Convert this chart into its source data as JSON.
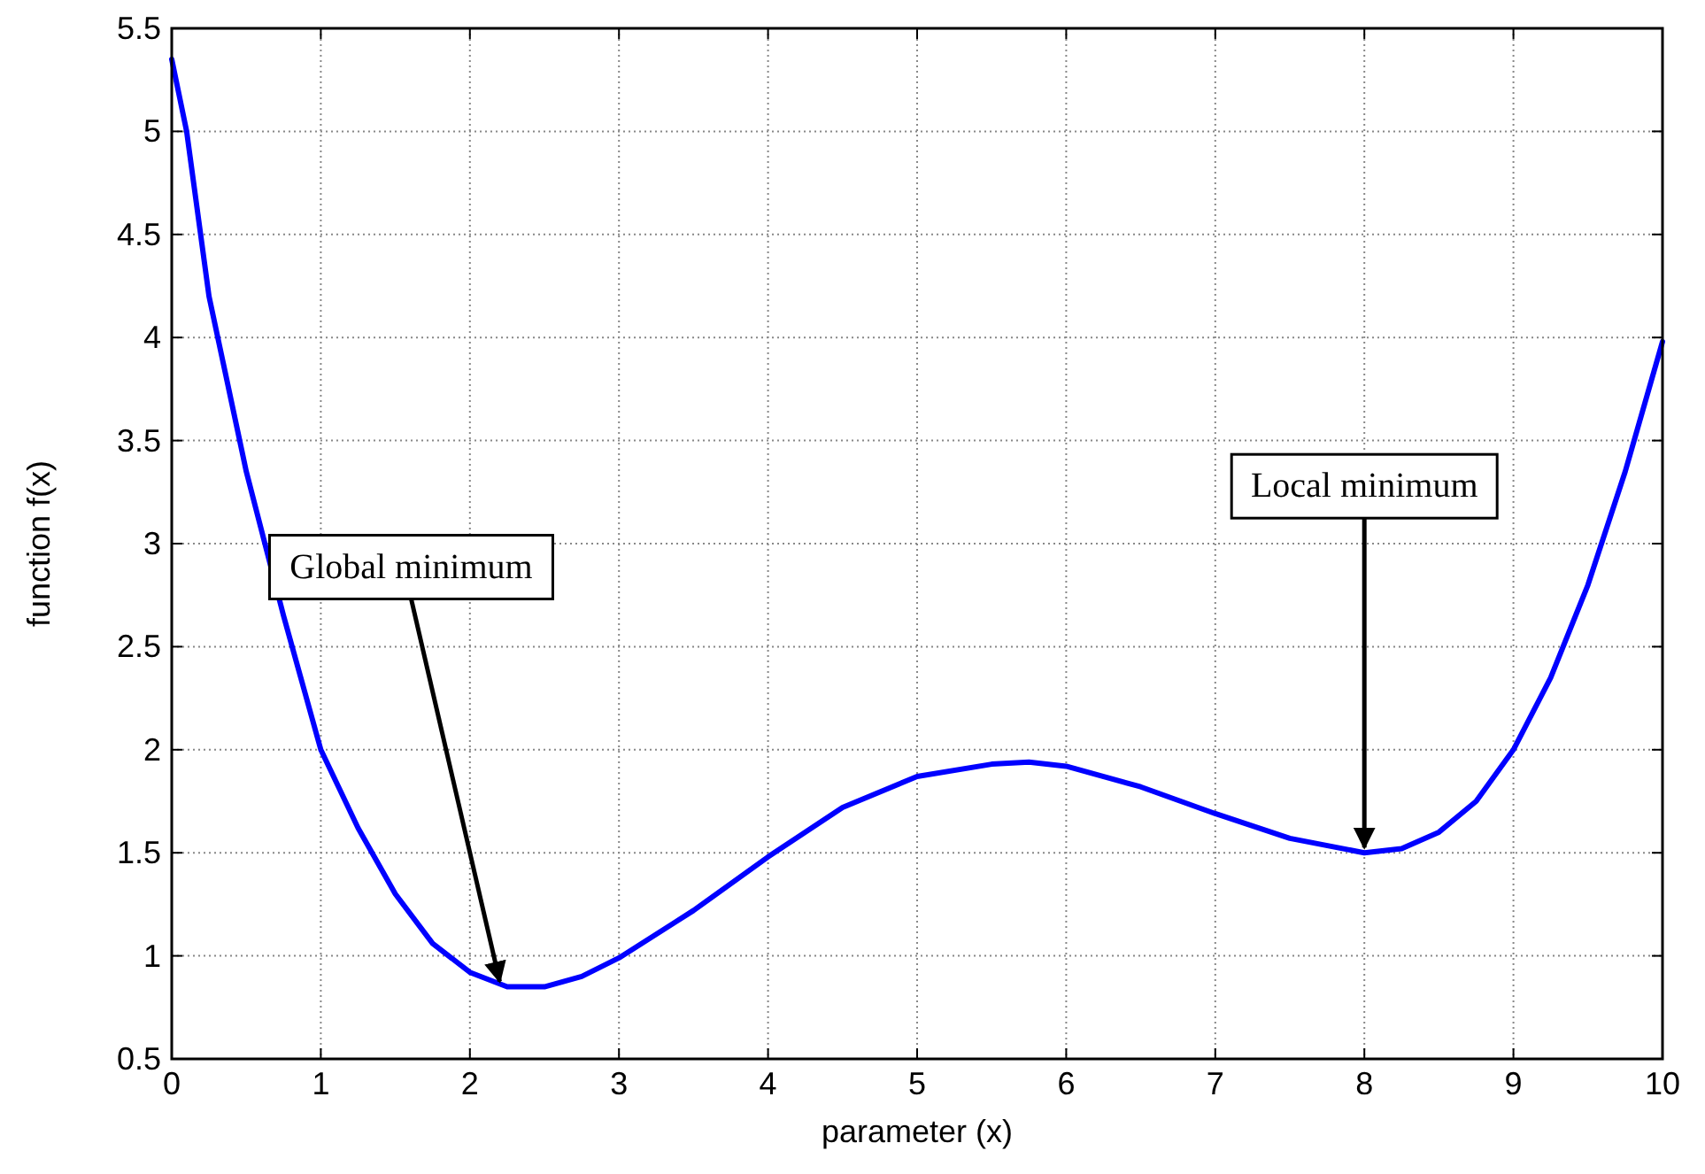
{
  "chart_data": {
    "type": "line",
    "xlabel": "parameter (x)",
    "ylabel": "function f(x)",
    "x": [
      0,
      0.1,
      0.25,
      0.5,
      0.75,
      1,
      1.25,
      1.5,
      1.75,
      2,
      2.25,
      2.5,
      2.75,
      3,
      3.5,
      4,
      4.5,
      5,
      5.5,
      5.75,
      6,
      6.5,
      7,
      7.5,
      8,
      8.25,
      8.5,
      8.75,
      9,
      9.25,
      9.5,
      9.75,
      10
    ],
    "series": [
      {
        "color": "#0000ff",
        "values": [
          5.35,
          5.0,
          4.2,
          3.35,
          2.65,
          2.0,
          1.62,
          1.3,
          1.06,
          0.92,
          0.85,
          0.85,
          0.9,
          0.99,
          1.22,
          1.48,
          1.72,
          1.87,
          1.93,
          1.94,
          1.92,
          1.82,
          1.69,
          1.57,
          1.5,
          1.52,
          1.6,
          1.75,
          2.0,
          2.35,
          2.8,
          3.35,
          3.98
        ]
      }
    ],
    "xlim": [
      0,
      10
    ],
    "xticks": [
      0,
      1,
      2,
      3,
      4,
      5,
      6,
      7,
      8,
      9,
      10
    ],
    "ylim": [
      0.5,
      5.5
    ],
    "yticks": [
      0.5,
      1,
      1.5,
      2,
      2.5,
      3,
      3.5,
      4,
      4.5,
      5,
      5.5
    ],
    "grid": true,
    "marker": "none",
    "line_style": "solid",
    "annotations": [
      {
        "text": "Global minimum",
        "x": 2.2,
        "y": 0.85
      },
      {
        "text": "Local minimum",
        "x": 8,
        "y": 1.5
      }
    ]
  }
}
